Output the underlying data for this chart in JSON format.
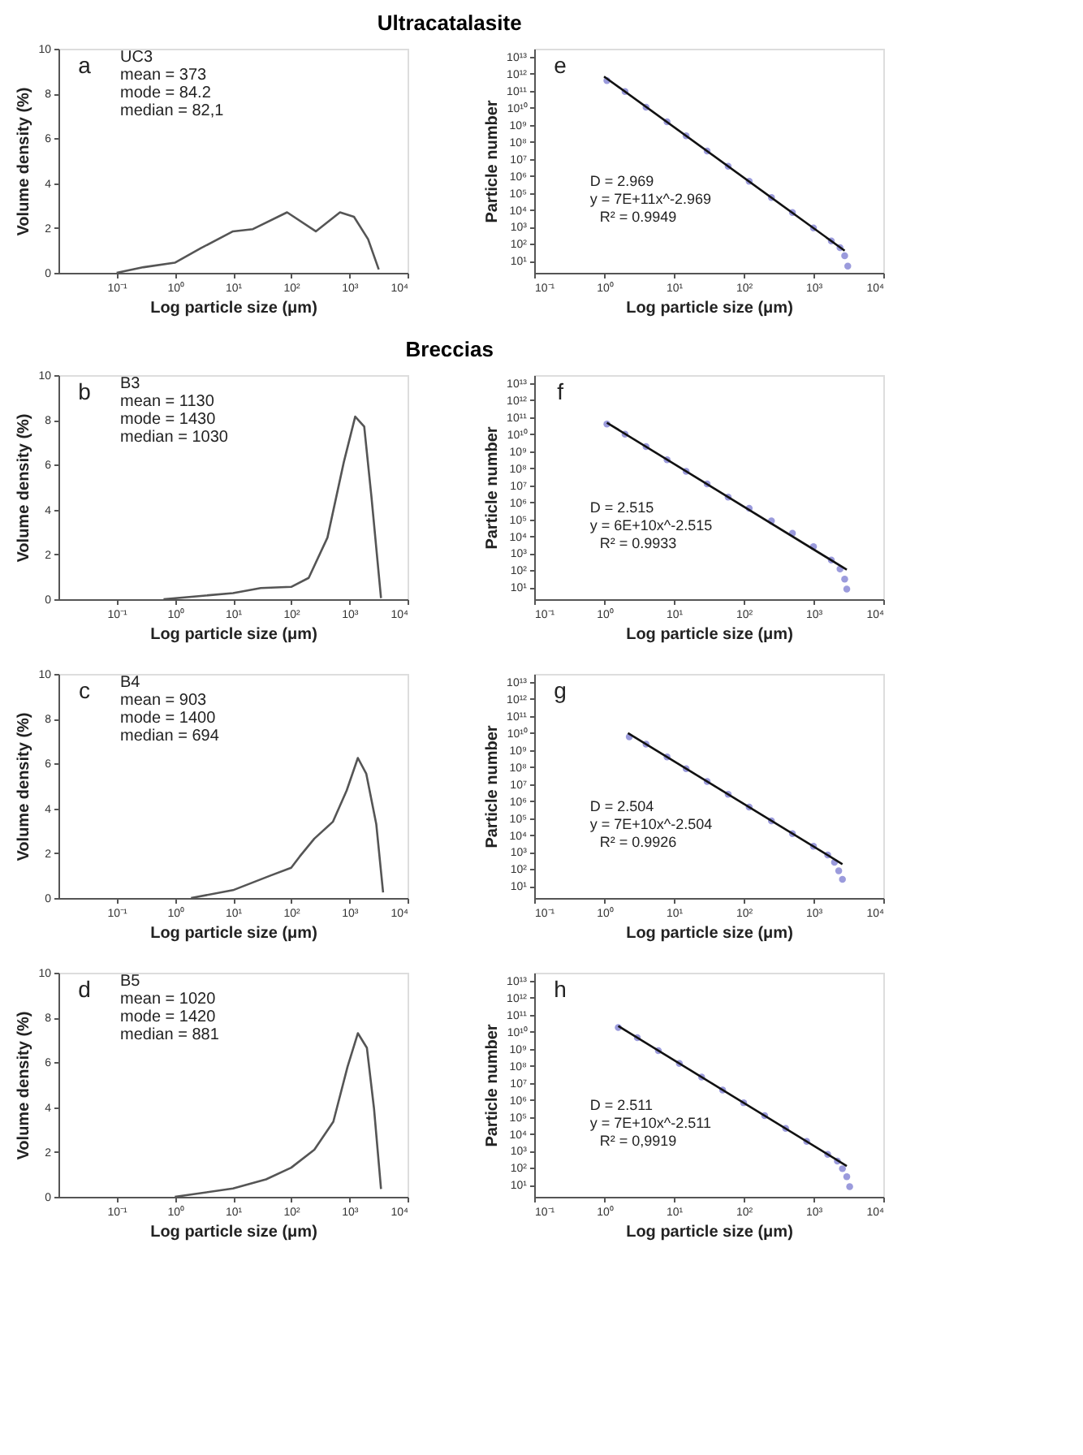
{
  "chart_data": [
    {
      "type": "line",
      "title": "Ultracatalasite",
      "xlabel": "Log particle size (μm)",
      "ylabel": "Volume density (%)",
      "color": "#555555",
      "log": "x",
      "xlim": [
        0.01,
        10000
      ],
      "xticks": [
        {
          "value": 0.1,
          "label": "10⁻¹"
        },
        {
          "value": 1,
          "label": "10⁰"
        },
        {
          "value": 10,
          "label": "10¹"
        },
        {
          "value": 100,
          "label": "10²"
        },
        {
          "value": 1000,
          "label": "10³"
        },
        {
          "value": 10000,
          "label": "10⁴"
        }
      ],
      "ylim": [
        0,
        10
      ],
      "yticks": [
        0,
        2,
        4,
        6,
        8,
        10
      ],
      "x": [
        0.1,
        0.29,
        1,
        2.8,
        10,
        22,
        85,
        265,
        690,
        1200,
        2100,
        3200
      ],
      "values": [
        0,
        0.25,
        0.45,
        1.1,
        1.85,
        1.95,
        2.7,
        1.85,
        2.7,
        2.5,
        1.5,
        0.15
      ],
      "annotations": [
        "a",
        "UC3",
        "mean = 373",
        "mode = 84.2",
        "median = 82,1"
      ]
    },
    {
      "type": "scatter",
      "xlabel": "Log particle size (μm)",
      "ylabel": "Particle number",
      "log": "xy",
      "xlim": [
        0.1,
        10000
      ],
      "xticks": [
        {
          "value": 0.1,
          "label": "10⁻¹"
        },
        {
          "value": 1,
          "label": "10⁰"
        },
        {
          "value": 10,
          "label": "10¹"
        },
        {
          "value": 100,
          "label": "10²"
        },
        {
          "value": 1000,
          "label": "10³"
        },
        {
          "value": 10000,
          "label": "10⁴"
        }
      ],
      "ylim": [
        2,
        30000000000000.0
      ],
      "yticks": [
        {
          "value": 10,
          "label": "10¹"
        },
        {
          "value": 100,
          "label": "10²"
        },
        {
          "value": 1000.0,
          "label": "10³"
        },
        {
          "value": 10000.0,
          "label": "10⁴"
        },
        {
          "value": 100000.0,
          "label": "10⁵"
        },
        {
          "value": 1000000.0,
          "label": "10⁶"
        },
        {
          "value": 10000000.0,
          "label": "10⁷"
        },
        {
          "value": 100000000.0,
          "label": "10⁸"
        },
        {
          "value": 1000000000.0,
          "label": "10⁹"
        },
        {
          "value": 10000000000.0,
          "label": "10¹⁰"
        },
        {
          "value": 100000000000.0,
          "label": "10¹¹"
        },
        {
          "value": 1000000000000.0,
          "label": "10¹²"
        },
        {
          "value": 10000000000000.0,
          "label": "10¹³"
        }
      ],
      "series": [
        {
          "type": "scatter",
          "marker": "circle",
          "color": "#8a8ad6",
          "x": [
            1.1,
            2,
            4,
            8,
            15,
            30,
            60,
            120,
            250,
            500,
            1000,
            1800,
            2400,
            2800,
            3100
          ],
          "values": [
            400000000000.0,
            90000000000.0,
            11000000000.0,
            1500000000.0,
            230000000.0,
            29000000.0,
            3700000.0,
            480000.0,
            54000.0,
            7000.0,
            870,
            150,
            60,
            20,
            5
          ]
        },
        {
          "type": "line",
          "color": "#111111",
          "x": [
            1,
            2800
          ],
          "values": [
            700000000000.0,
            40
          ]
        }
      ],
      "annotations": [
        "e",
        "D = 2.969",
        "y = 7E+11x^-2.969",
        "R² = 0.9949"
      ]
    },
    {
      "type": "line",
      "title": "Breccias",
      "xlabel": "Log particle size (μm)",
      "ylabel": "Volume density (%)",
      "color": "#555555",
      "log": "x",
      "xlim": [
        0.01,
        10000
      ],
      "xticks": [
        {
          "value": 0.1,
          "label": "10⁻¹"
        },
        {
          "value": 1,
          "label": "10⁰"
        },
        {
          "value": 10,
          "label": "10¹"
        },
        {
          "value": 100,
          "label": "10²"
        },
        {
          "value": 1000,
          "label": "10³"
        },
        {
          "value": 10000,
          "label": "10⁴"
        }
      ],
      "ylim": [
        0,
        10
      ],
      "yticks": [
        0,
        2,
        4,
        6,
        8,
        10
      ],
      "x": [
        0.64,
        10,
        30,
        100,
        200,
        420,
        800,
        1260,
        1800,
        2400,
        3500
      ],
      "values": [
        0,
        0.27,
        0.5,
        0.55,
        0.95,
        2.75,
        6.1,
        8.15,
        7.7,
        4.55,
        0.05
      ],
      "annotations": [
        "b",
        "B3",
        "mean = 1130",
        "mode = 1430",
        "median = 1030"
      ]
    },
    {
      "type": "scatter",
      "xlabel": "Log particle size (μm)",
      "ylabel": "Particle number",
      "log": "xy",
      "xlim": [
        0.1,
        10000
      ],
      "xticks": [
        {
          "value": 0.1,
          "label": "10⁻¹"
        },
        {
          "value": 1,
          "label": "10⁰"
        },
        {
          "value": 10,
          "label": "10¹"
        },
        {
          "value": 100,
          "label": "10²"
        },
        {
          "value": 1000,
          "label": "10³"
        },
        {
          "value": 10000,
          "label": "10⁴"
        }
      ],
      "ylim": [
        2,
        30000000000000.0
      ],
      "yticks": [
        {
          "value": 10,
          "label": "10¹"
        },
        {
          "value": 100,
          "label": "10²"
        },
        {
          "value": 1000.0,
          "label": "10³"
        },
        {
          "value": 10000.0,
          "label": "10⁴"
        },
        {
          "value": 100000.0,
          "label": "10⁵"
        },
        {
          "value": 1000000.0,
          "label": "10⁶"
        },
        {
          "value": 10000000.0,
          "label": "10⁷"
        },
        {
          "value": 100000000.0,
          "label": "10⁸"
        },
        {
          "value": 1000000000.0,
          "label": "10⁹"
        },
        {
          "value": 10000000000.0,
          "label": "10¹⁰"
        },
        {
          "value": 100000000000.0,
          "label": "10¹¹"
        },
        {
          "value": 1000000000000.0,
          "label": "10¹²"
        },
        {
          "value": 10000000000000.0,
          "label": "10¹³"
        }
      ],
      "series": [
        {
          "type": "scatter",
          "marker": "circle",
          "color": "#8a8ad6",
          "x": [
            1.1,
            2,
            4,
            8,
            15,
            30,
            60,
            120,
            250,
            500,
            1000,
            1800,
            2400,
            2800,
            3000
          ],
          "values": [
            40000000000.0,
            10000000000.0,
            1900000000.0,
            320000000.0,
            66000000.0,
            12000000.0,
            2000000.0,
            450000.0,
            80000.0,
            15000.0,
            2500.0,
            400,
            120,
            30,
            8
          ]
        },
        {
          "type": "line",
          "color": "#111111",
          "x": [
            1.1,
            3000
          ],
          "values": [
            48000000000.0,
            108
          ]
        }
      ],
      "annotations": [
        "f",
        "D = 2.515",
        "y = 6E+10x^-2.515",
        "R² = 0.9933"
      ]
    },
    {
      "type": "line",
      "xlabel": "Log particle size (μm)",
      "ylabel": "Volume density (%)",
      "color": "#555555",
      "log": "x",
      "xlim": [
        0.01,
        10000
      ],
      "xticks": [
        {
          "value": 0.1,
          "label": "10⁻¹"
        },
        {
          "value": 1,
          "label": "10⁰"
        },
        {
          "value": 10,
          "label": "10¹"
        },
        {
          "value": 100,
          "label": "10²"
        },
        {
          "value": 1000,
          "label": "10³"
        },
        {
          "value": 10000,
          "label": "10⁴"
        }
      ],
      "ylim": [
        0,
        10
      ],
      "yticks": [
        0,
        2,
        4,
        6,
        8,
        10
      ],
      "x": [
        1.9,
        10,
        44,
        100,
        140,
        250,
        520,
        900,
        1400,
        1950,
        2900,
        3800
      ],
      "values": [
        0,
        0.35,
        1.0,
        1.35,
        1.85,
        2.65,
        3.4,
        4.8,
        6.25,
        5.55,
        3.3,
        0.25
      ],
      "annotations": [
        "c",
        "B4",
        "mean = 903",
        "mode = 1400",
        "median = 694"
      ]
    },
    {
      "type": "scatter",
      "xlabel": "Log particle size (μm)",
      "ylabel": "Particle number",
      "log": "xy",
      "xlim": [
        0.1,
        10000
      ],
      "xticks": [
        {
          "value": 0.1,
          "label": "10⁻¹"
        },
        {
          "value": 1,
          "label": "10⁰"
        },
        {
          "value": 10,
          "label": "10¹"
        },
        {
          "value": 100,
          "label": "10²"
        },
        {
          "value": 1000,
          "label": "10³"
        },
        {
          "value": 10000,
          "label": "10⁴"
        }
      ],
      "ylim": [
        2,
        30000000000000.0
      ],
      "yticks": [
        {
          "value": 10,
          "label": "10¹"
        },
        {
          "value": 100,
          "label": "10²"
        },
        {
          "value": 1000.0,
          "label": "10³"
        },
        {
          "value": 10000.0,
          "label": "10⁴"
        },
        {
          "value": 100000.0,
          "label": "10⁵"
        },
        {
          "value": 1000000.0,
          "label": "10⁶"
        },
        {
          "value": 10000000.0,
          "label": "10⁷"
        },
        {
          "value": 100000000.0,
          "label": "10⁸"
        },
        {
          "value": 1000000000.0,
          "label": "10⁹"
        },
        {
          "value": 10000000000.0,
          "label": "10¹⁰"
        },
        {
          "value": 100000000000.0,
          "label": "10¹¹"
        },
        {
          "value": 1000000000000.0,
          "label": "10¹²"
        },
        {
          "value": 10000000000000.0,
          "label": "10¹³"
        }
      ],
      "series": [
        {
          "type": "scatter",
          "marker": "circle",
          "color": "#8a8ad6",
          "x": [
            2.3,
            4,
            8,
            15,
            30,
            60,
            120,
            250,
            500,
            1000,
            1600,
            2000,
            2300,
            2600
          ],
          "values": [
            6000000000.0,
            2200000000.0,
            390000000.0,
            80000000.0,
            14000000.0,
            2500000.0,
            440000.0,
            69000.0,
            12000.0,
            2200.0,
            680,
            250,
            80,
            25
          ]
        },
        {
          "type": "line",
          "color": "#111111",
          "x": [
            2.2,
            2600
          ],
          "values": [
            10000000000.0,
            196
          ]
        }
      ],
      "annotations": [
        "g",
        "D = 2.504",
        "y = 7E+10x^-2.504",
        "R² = 0.9926"
      ]
    },
    {
      "type": "line",
      "xlabel": "Log particle size (μm)",
      "ylabel": "Volume density (%)",
      "color": "#555555",
      "log": "x",
      "xlim": [
        0.01,
        10000
      ],
      "xticks": [
        {
          "value": 0.1,
          "label": "10⁻¹"
        },
        {
          "value": 1,
          "label": "10⁰"
        },
        {
          "value": 10,
          "label": "10¹"
        },
        {
          "value": 100,
          "label": "10²"
        },
        {
          "value": 1000,
          "label": "10³"
        },
        {
          "value": 10000,
          "label": "10⁴"
        }
      ],
      "ylim": [
        0,
        10
      ],
      "yticks": [
        0,
        2,
        4,
        6,
        8,
        10
      ],
      "x": [
        1,
        10,
        37,
        100,
        250,
        530,
        930,
        1400,
        2000,
        2650,
        3500
      ],
      "values": [
        0,
        0.37,
        0.78,
        1.3,
        2.1,
        3.35,
        5.8,
        7.3,
        6.65,
        3.95,
        0.35
      ],
      "annotations": [
        "d",
        "B5",
        "mean = 1020",
        "mode = 1420",
        "median = 881"
      ]
    },
    {
      "type": "scatter",
      "xlabel": "Log particle size (μm)",
      "ylabel": "Particle number",
      "log": "xy",
      "xlim": [
        0.1,
        10000
      ],
      "xticks": [
        {
          "value": 0.1,
          "label": "10⁻¹"
        },
        {
          "value": 1,
          "label": "10⁰"
        },
        {
          "value": 10,
          "label": "10¹"
        },
        {
          "value": 100,
          "label": "10²"
        },
        {
          "value": 1000,
          "label": "10³"
        },
        {
          "value": 10000,
          "label": "10⁴"
        }
      ],
      "ylim": [
        2,
        30000000000000.0
      ],
      "yticks": [
        {
          "value": 10,
          "label": "10¹"
        },
        {
          "value": 100,
          "label": "10²"
        },
        {
          "value": 1000.0,
          "label": "10³"
        },
        {
          "value": 10000.0,
          "label": "10⁴"
        },
        {
          "value": 100000.0,
          "label": "10⁵"
        },
        {
          "value": 1000000.0,
          "label": "10⁶"
        },
        {
          "value": 10000000.0,
          "label": "10⁷"
        },
        {
          "value": 100000000.0,
          "label": "10⁸"
        },
        {
          "value": 1000000000.0,
          "label": "10⁹"
        },
        {
          "value": 10000000000.0,
          "label": "10¹⁰"
        },
        {
          "value": 100000000000.0,
          "label": "10¹¹"
        },
        {
          "value": 1000000000000.0,
          "label": "10¹²"
        },
        {
          "value": 10000000000000.0,
          "label": "10¹³"
        }
      ],
      "series": [
        {
          "type": "scatter",
          "marker": "circle",
          "color": "#8a8ad6",
          "x": [
            1.6,
            3,
            6,
            12,
            25,
            50,
            100,
            200,
            400,
            800,
            1600,
            2200,
            2600,
            3000,
            3300
          ],
          "values": [
            18000000000.0,
            4500000000.0,
            790000000.0,
            140000000.0,
            22000000.0,
            3800000.0,
            680000.0,
            120000.0,
            21000.0,
            3600.0,
            630,
            250,
            90,
            30,
            8
          ]
        },
        {
          "type": "line",
          "color": "#111111",
          "x": [
            1.6,
            3000
          ],
          "values": [
            22000000000.0,
            130
          ]
        }
      ],
      "annotations": [
        "h",
        "D = 2.511",
        "y = 7E+10x^-2.511",
        "R² = 0,9919"
      ]
    }
  ]
}
